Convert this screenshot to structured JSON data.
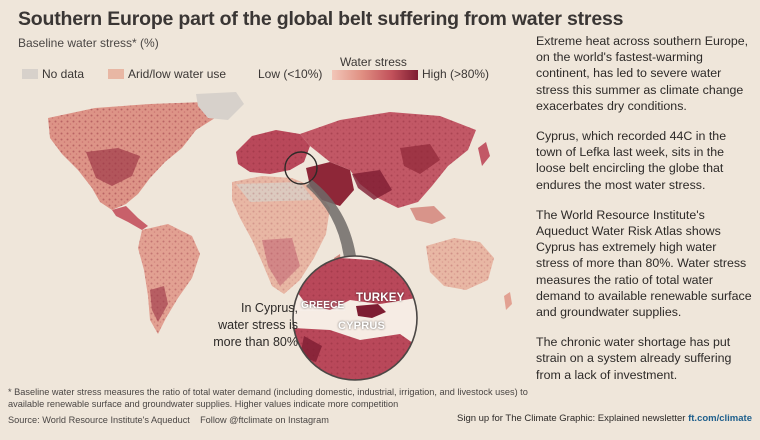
{
  "title": "Southern Europe part of the global belt suffering from water stress",
  "subtitle": "Baseline water stress* (%)",
  "legend": {
    "no_data": "No data",
    "arid": "Arid/low water use",
    "water_stress_title": "Water stress",
    "low": "Low (<10%)",
    "high": "High (>80%)",
    "colors": {
      "no_data": "#d7d1cb",
      "arid": "#e8b7a4",
      "low": "#f2c6b8",
      "high": "#7e1d32"
    }
  },
  "map": {
    "inset_labels": {
      "greece": "GREECE",
      "turkey": "TURKEY",
      "cyprus": "CYPRUS"
    },
    "callout": [
      "In Cyprus,",
      "water stress is",
      "more than 80%"
    ]
  },
  "article": {
    "paragraphs": [
      "Extreme heat across southern Europe, on the world's fastest-warming continent, has led to severe water stress this summer as climate change exacerbates dry conditions.",
      "Cyprus, which recorded 44C in the town of Lefka last week, sits in the loose belt encircling the globe that endures the most water stress.",
      "The World Resource Institute's Aqueduct Water Risk Atlas shows Cyprus has extremely high water stress of more than 80%. Water stress measures the ratio of total water demand to available renewable surface and groundwater supplies.",
      "The chronic water shortage has put strain on a system already suffering from a lack of investment."
    ]
  },
  "footnote": "* Baseline water stress measures the ratio of total water demand (including domestic, industrial, irrigation, and livestock uses) to available renewable surface and groundwater supplies. Higher values indicate more competition",
  "source": "Source: World Resource Institute's Aqueduct    Follow @ftclimate on Instagram",
  "signup": {
    "text": "Sign up for The Climate Graphic: Explained newsletter",
    "link": "ft.com/climate"
  }
}
